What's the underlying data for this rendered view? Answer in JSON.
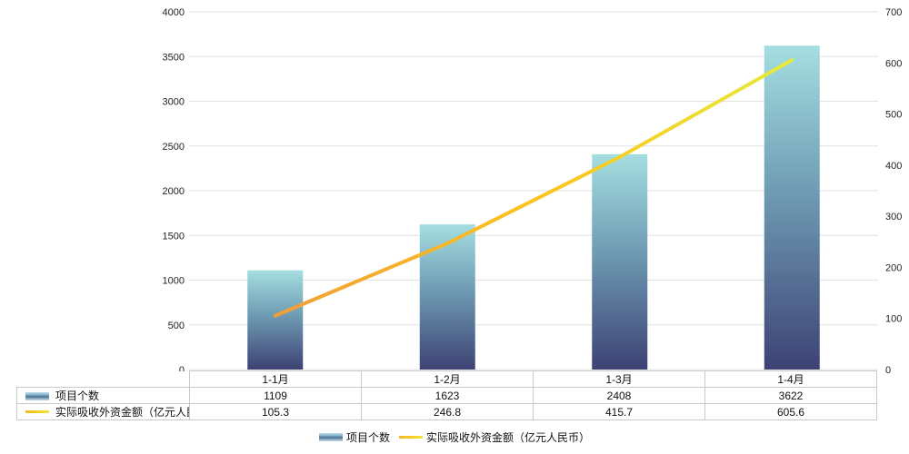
{
  "chart_data": {
    "type": "bar",
    "categories": [
      "1-1月",
      "1-2月",
      "1-3月",
      "1-4月"
    ],
    "series": [
      {
        "name": "项目个数",
        "type": "bar",
        "axis": "left",
        "values": [
          1109,
          1623,
          2408,
          3622
        ]
      },
      {
        "name": "实际吸收外资金额（亿元人民币）",
        "type": "line",
        "axis": "right",
        "values": [
          105.3,
          246.8,
          415.7,
          605.6
        ]
      }
    ],
    "title": "",
    "xlabel": "",
    "ylabel": "",
    "left_axis": {
      "min": 0,
      "max": 4000,
      "step": 500,
      "ticks": [
        "0",
        "500",
        "1000",
        "1500",
        "2000",
        "2500",
        "3000",
        "3500",
        "4000"
      ]
    },
    "right_axis": {
      "min": 0,
      "max": 700,
      "step": 100,
      "ticks": [
        "0",
        "100",
        "200",
        "300",
        "400",
        "500",
        "600",
        "700"
      ]
    },
    "grid": true,
    "legend_position": "bottom"
  },
  "table": {
    "header": {
      "labels": [
        "1-1月",
        "1-2月",
        "1-3月",
        "1-4月"
      ]
    },
    "rows": [
      {
        "label": "项目个数",
        "marker": "bar-swatch",
        "values": [
          "1109",
          "1623",
          "2408",
          "3622"
        ]
      },
      {
        "label": "实际吸收外资金额（亿元人民币）",
        "marker": "line-swatch",
        "values": [
          "105.3",
          "246.8",
          "415.7",
          "605.6"
        ]
      }
    ]
  },
  "legend": {
    "items": [
      {
        "label": "项目个数",
        "marker": "bar-swatch"
      },
      {
        "label": "实际吸收外资金额（亿元人民币）",
        "marker": "line-swatch"
      }
    ]
  },
  "colors": {
    "bar_top": "#a5dee1",
    "bar_mid": "#6f9cb4",
    "bar_bottom": "#3d4274",
    "line_start": "#f29e38",
    "line_mid": "#fcc31d",
    "line_end": "#e7ea3c",
    "grid": "#e2e2e2",
    "axis_text": "#222222",
    "table_border": "#c9c9c9"
  }
}
